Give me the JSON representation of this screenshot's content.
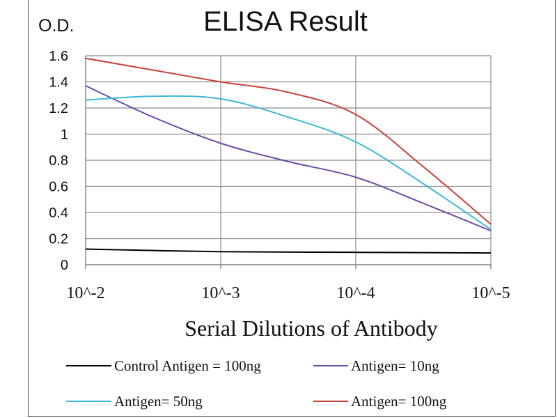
{
  "chart_data": {
    "type": "line",
    "title": "ELISA Result",
    "ylabel": "O.D.",
    "xlabel": "Serial Dilutions  of Antibody",
    "categories": [
      "10^-2",
      "10^-3",
      "10^-4",
      "10^-5"
    ],
    "ylim": [
      0,
      1.6
    ],
    "yticks": [
      "0",
      "0.2",
      "0.4",
      "0.6",
      "0.8",
      "1",
      "1.2",
      "1.4",
      "1.6"
    ],
    "grid": true,
    "legend_position": "bottom",
    "series": [
      {
        "name": "Control Antigen = 100ng",
        "color": "#000000",
        "x": [
          0,
          1,
          2,
          3
        ],
        "values": [
          0.12,
          0.1,
          0.095,
          0.09
        ]
      },
      {
        "name": "Antigen= 10ng",
        "color": "#6a4aa8",
        "x": [
          0,
          0.5,
          1,
          1.5,
          2,
          2.5,
          3
        ],
        "values": [
          1.37,
          1.13,
          0.93,
          0.79,
          0.67,
          0.47,
          0.26
        ]
      },
      {
        "name": "Antigen= 50ng",
        "color": "#3fb7d6",
        "x": [
          0,
          0.5,
          1,
          1.5,
          2,
          2.5,
          3
        ],
        "values": [
          1.26,
          1.29,
          1.27,
          1.13,
          0.94,
          0.62,
          0.27
        ]
      },
      {
        "name": "Antigen= 100ng",
        "color": "#c8403a",
        "x": [
          0,
          0.5,
          1,
          1.5,
          2,
          2.5,
          3
        ],
        "values": [
          1.58,
          1.49,
          1.4,
          1.32,
          1.15,
          0.75,
          0.31
        ]
      }
    ]
  }
}
